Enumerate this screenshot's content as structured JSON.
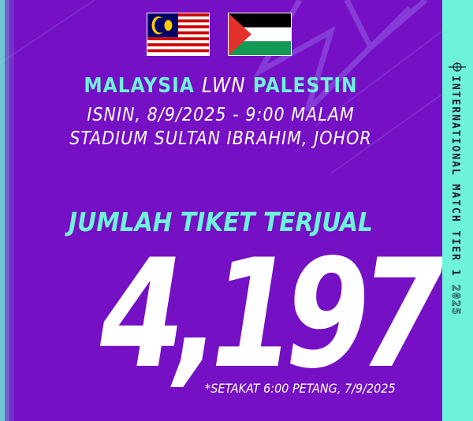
{
  "flags": {
    "home": "Malaysia flag",
    "away": "Palestine flag"
  },
  "match": {
    "home": "MALAYSIA",
    "vs": "LWN",
    "away": "PALESTIN"
  },
  "date_time": "ISNIN, 8/9/2025 - 9:00 MALAM",
  "venue": "STADIUM SULTAN IBRAHIM, JOHOR",
  "tickets_label": "JUMLAH TIKET TERJUAL",
  "tickets_sold": "4,197",
  "note": "*SETAKAT 6:00 PETANG, 7/9/2025",
  "side_banner": {
    "text": "INTERNATIONAL MATCH TIER 1",
    "year": "2025"
  },
  "colors": {
    "background": "#7510c4",
    "accent": "#6ff2da",
    "text": "#ffffff"
  }
}
